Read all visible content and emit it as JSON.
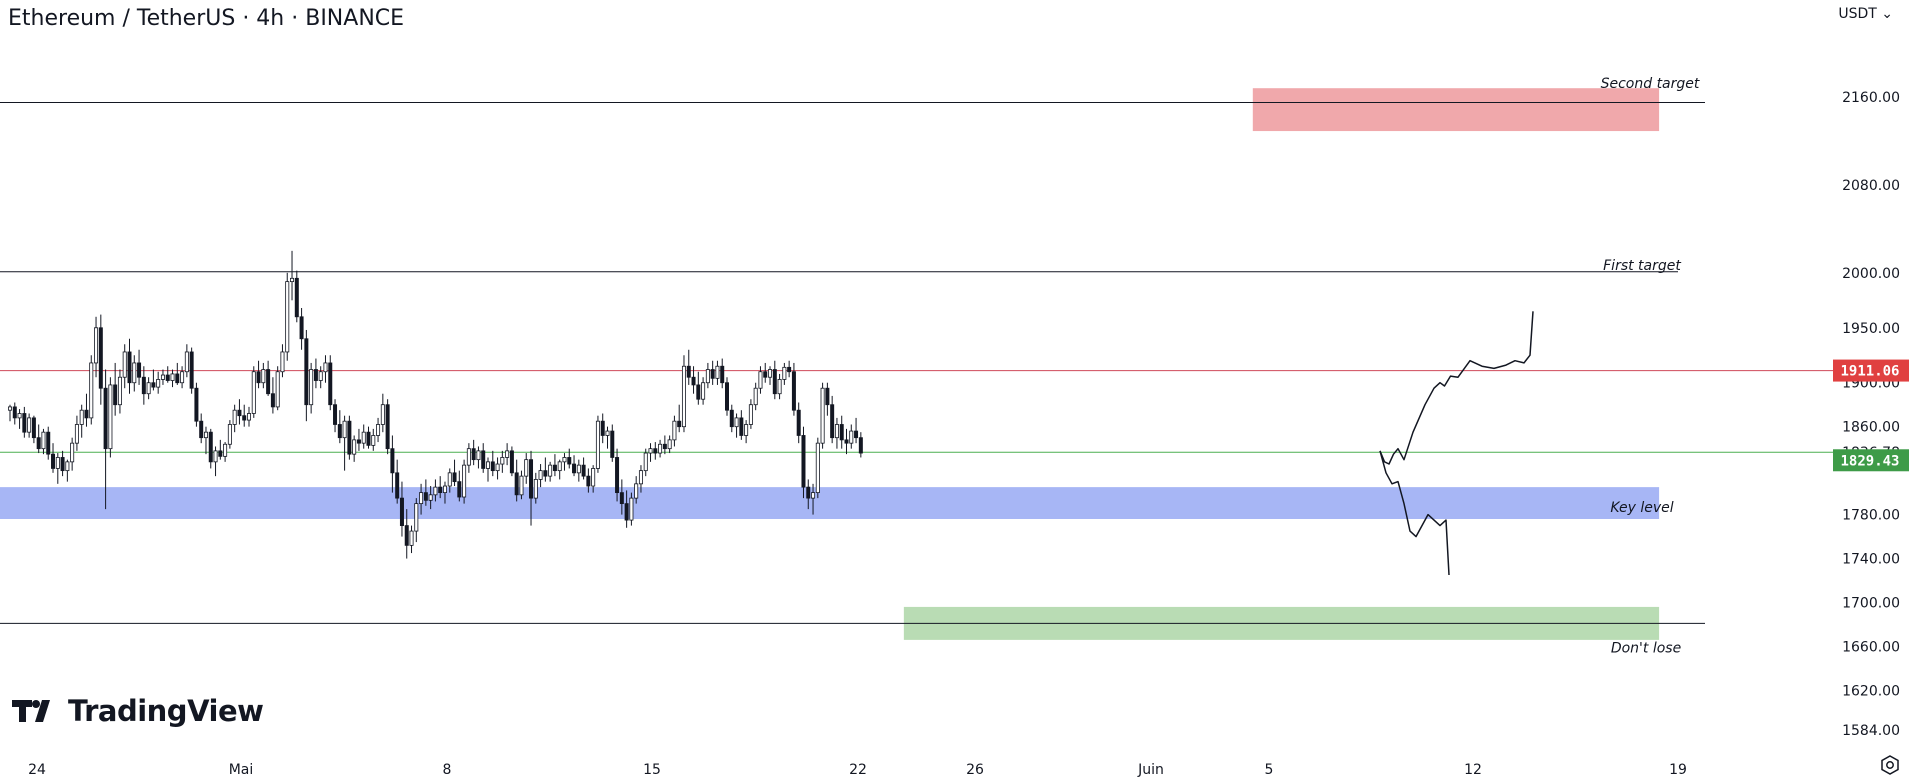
{
  "header": {
    "title": "Ethereum / TetherUS · 4h · BINANCE",
    "currency": "USDT"
  },
  "brand": {
    "name": "TradingView"
  },
  "colors": {
    "up": "#131722",
    "down": "#131722",
    "second_target_zone": "#f0a8ab",
    "key_level_zone": "#a7b6f5",
    "dont_lose_zone": "#b9dcb4",
    "resistance_line": "#cf4a5a",
    "support_line": "#4caf50",
    "badge_red": "#e04040",
    "badge_green": "#3e9b48"
  },
  "chart_data": {
    "type": "candlestick",
    "symbol": "ETHUSDT",
    "interval": "4h",
    "ylim": [
      1570,
      2200
    ],
    "price_ticks": [
      "2160.00",
      "2080.00",
      "2000.00",
      "1950.00",
      "1900.00",
      "1860.00",
      "1780.00",
      "1740.00",
      "1700.00",
      "1660.00",
      "1620.00",
      "1584.00"
    ],
    "time_ticks": [
      {
        "label": "24",
        "index": 0
      },
      {
        "label": "Mai",
        "index": 42
      },
      {
        "label": "8",
        "index": 84
      },
      {
        "label": "15",
        "index": 126
      },
      {
        "label": "22",
        "index": 168
      },
      {
        "label": "26",
        "index": 192
      },
      {
        "label": "Juin",
        "index": 234
      },
      {
        "label": "5",
        "index": 258
      },
      {
        "label": "12",
        "index": 300
      },
      {
        "label": "19",
        "index": 342
      }
    ],
    "x_range": [
      -5,
      348
    ],
    "horizontal_lines": [
      {
        "price": 2155,
        "color": "#131722"
      },
      {
        "price": 2001,
        "color": "#131722"
      },
      {
        "price": 1911.06,
        "color": "#cf4a5a"
      },
      {
        "price": 1836.78,
        "color": "#4caf50"
      },
      {
        "price": 1681,
        "color": "#131722"
      }
    ],
    "zones": [
      {
        "name": "Second target",
        "from_index": 260,
        "to_index": 345,
        "top": 2168,
        "bottom": 2129,
        "color": "#f0a8ab",
        "label_pos": "above"
      },
      {
        "name": "Key level",
        "from_index": -5,
        "to_index": 345,
        "top": 1805,
        "bottom": 1776,
        "color": "#a7b6f5",
        "label_pos": "inside"
      },
      {
        "name": "Don't lose",
        "from_index": 187,
        "to_index": 345,
        "top": 1696,
        "bottom": 1666,
        "color": "#b9dcb4",
        "label_pos": "below"
      }
    ],
    "annotations": [
      {
        "text": "Second target",
        "index": 328,
        "price": 2172
      },
      {
        "text": "First target",
        "index": 326,
        "price": 2006
      },
      {
        "text": "Key level",
        "index": 326,
        "price": 1786
      },
      {
        "text": "Don't lose",
        "index": 326,
        "price": 1658
      }
    ],
    "price_labels": [
      {
        "value": "1911.06",
        "price": 1911.06,
        "style": "badge",
        "color": "#e04040"
      },
      {
        "value": "1836.78",
        "price": 1836.78,
        "style": "plain"
      },
      {
        "value": "1829.43",
        "price": 1829.43,
        "style": "badge",
        "color": "#3e9b48"
      }
    ],
    "candles": [
      [
        1875,
        1880,
        1865,
        1878
      ],
      [
        1878,
        1882,
        1862,
        1868
      ],
      [
        1868,
        1876,
        1858,
        1872
      ],
      [
        1872,
        1878,
        1850,
        1855
      ],
      [
        1855,
        1872,
        1850,
        1868
      ],
      [
        1868,
        1870,
        1845,
        1850
      ],
      [
        1850,
        1862,
        1836,
        1840
      ],
      [
        1840,
        1858,
        1835,
        1855
      ],
      [
        1855,
        1860,
        1830,
        1835
      ],
      [
        1835,
        1845,
        1818,
        1822
      ],
      [
        1822,
        1836,
        1808,
        1832
      ],
      [
        1832,
        1838,
        1815,
        1820
      ],
      [
        1820,
        1830,
        1810,
        1828
      ],
      [
        1828,
        1850,
        1820,
        1845
      ],
      [
        1845,
        1870,
        1838,
        1862
      ],
      [
        1862,
        1880,
        1850,
        1875
      ],
      [
        1875,
        1890,
        1860,
        1868
      ],
      [
        1868,
        1925,
        1862,
        1918
      ],
      [
        1918,
        1960,
        1905,
        1950
      ],
      [
        1950,
        1962,
        1880,
        1895
      ],
      [
        1895,
        1912,
        1785,
        1840
      ],
      [
        1840,
        1905,
        1832,
        1898
      ],
      [
        1898,
        1918,
        1870,
        1880
      ],
      [
        1880,
        1912,
        1872,
        1905
      ],
      [
        1905,
        1935,
        1895,
        1928
      ],
      [
        1928,
        1940,
        1890,
        1900
      ],
      [
        1900,
        1925,
        1892,
        1918
      ],
      [
        1918,
        1930,
        1898,
        1905
      ],
      [
        1905,
        1915,
        1880,
        1890
      ],
      [
        1890,
        1905,
        1885,
        1900
      ],
      [
        1900,
        1912,
        1893,
        1896
      ],
      [
        1896,
        1910,
        1890,
        1903
      ],
      [
        1903,
        1912,
        1898,
        1907
      ],
      [
        1907,
        1915,
        1900,
        1902
      ],
      [
        1902,
        1912,
        1896,
        1908
      ],
      [
        1908,
        1918,
        1898,
        1900
      ],
      [
        1900,
        1915,
        1895,
        1910
      ],
      [
        1910,
        1935,
        1905,
        1928
      ],
      [
        1928,
        1932,
        1890,
        1895
      ],
      [
        1895,
        1900,
        1860,
        1865
      ],
      [
        1865,
        1872,
        1845,
        1850
      ],
      [
        1850,
        1860,
        1835,
        1855
      ],
      [
        1855,
        1858,
        1822,
        1828
      ],
      [
        1828,
        1842,
        1815,
        1838
      ],
      [
        1838,
        1848,
        1830,
        1833
      ],
      [
        1833,
        1846,
        1828,
        1844
      ],
      [
        1844,
        1866,
        1840,
        1862
      ],
      [
        1862,
        1880,
        1855,
        1875
      ],
      [
        1875,
        1885,
        1862,
        1870
      ],
      [
        1870,
        1880,
        1860,
        1866
      ],
      [
        1866,
        1878,
        1860,
        1872
      ],
      [
        1872,
        1915,
        1868,
        1910
      ],
      [
        1910,
        1920,
        1895,
        1900
      ],
      [
        1900,
        1918,
        1895,
        1912
      ],
      [
        1912,
        1920,
        1888,
        1890
      ],
      [
        1890,
        1905,
        1872,
        1878
      ],
      [
        1878,
        1915,
        1875,
        1910
      ],
      [
        1910,
        1935,
        1905,
        1928
      ],
      [
        1928,
        2000,
        1920,
        1992
      ],
      [
        1992,
        2020,
        1975,
        1995
      ],
      [
        1995,
        2002,
        1955,
        1960
      ],
      [
        1960,
        1968,
        1930,
        1940
      ],
      [
        1940,
        1948,
        1865,
        1880
      ],
      [
        1880,
        1918,
        1872,
        1912
      ],
      [
        1912,
        1922,
        1895,
        1902
      ],
      [
        1902,
        1915,
        1895,
        1910
      ],
      [
        1910,
        1925,
        1900,
        1918
      ],
      [
        1918,
        1925,
        1875,
        1880
      ],
      [
        1880,
        1885,
        1855,
        1862
      ],
      [
        1862,
        1875,
        1845,
        1850
      ],
      [
        1850,
        1870,
        1820,
        1865
      ],
      [
        1865,
        1870,
        1830,
        1835
      ],
      [
        1835,
        1852,
        1828,
        1848
      ],
      [
        1848,
        1858,
        1838,
        1845
      ],
      [
        1845,
        1862,
        1840,
        1855
      ],
      [
        1855,
        1860,
        1840,
        1843
      ],
      [
        1843,
        1858,
        1838,
        1852
      ],
      [
        1852,
        1868,
        1846,
        1862
      ],
      [
        1862,
        1890,
        1855,
        1880
      ],
      [
        1880,
        1885,
        1835,
        1840
      ],
      [
        1840,
        1852,
        1800,
        1818
      ],
      [
        1818,
        1830,
        1790,
        1795
      ],
      [
        1795,
        1810,
        1760,
        1770
      ],
      [
        1770,
        1785,
        1740,
        1752
      ],
      [
        1752,
        1770,
        1745,
        1765
      ],
      [
        1765,
        1795,
        1755,
        1790
      ],
      [
        1790,
        1808,
        1780,
        1800
      ],
      [
        1800,
        1812,
        1788,
        1793
      ],
      [
        1793,
        1806,
        1785,
        1798
      ],
      [
        1798,
        1812,
        1792,
        1805
      ],
      [
        1805,
        1815,
        1795,
        1800
      ],
      [
        1800,
        1810,
        1790,
        1806
      ],
      [
        1806,
        1822,
        1800,
        1818
      ],
      [
        1818,
        1830,
        1806,
        1810
      ],
      [
        1810,
        1820,
        1792,
        1796
      ],
      [
        1796,
        1830,
        1790,
        1825
      ],
      [
        1825,
        1845,
        1818,
        1840
      ],
      [
        1840,
        1848,
        1825,
        1830
      ],
      [
        1830,
        1842,
        1822,
        1838
      ],
      [
        1838,
        1845,
        1818,
        1822
      ],
      [
        1822,
        1832,
        1810,
        1828
      ],
      [
        1828,
        1838,
        1815,
        1820
      ],
      [
        1820,
        1832,
        1812,
        1826
      ],
      [
        1826,
        1838,
        1818,
        1832
      ],
      [
        1832,
        1845,
        1825,
        1838
      ],
      [
        1838,
        1842,
        1815,
        1818
      ],
      [
        1818,
        1830,
        1792,
        1798
      ],
      [
        1798,
        1820,
        1794,
        1815
      ],
      [
        1815,
        1836,
        1808,
        1830
      ],
      [
        1830,
        1838,
        1770,
        1795
      ],
      [
        1795,
        1818,
        1790,
        1812
      ],
      [
        1812,
        1826,
        1805,
        1820
      ],
      [
        1820,
        1832,
        1810,
        1815
      ],
      [
        1815,
        1828,
        1810,
        1825
      ],
      [
        1825,
        1835,
        1815,
        1820
      ],
      [
        1820,
        1830,
        1812,
        1828
      ],
      [
        1828,
        1836,
        1820,
        1832
      ],
      [
        1832,
        1840,
        1822,
        1826
      ],
      [
        1826,
        1834,
        1815,
        1818
      ],
      [
        1818,
        1830,
        1810,
        1825
      ],
      [
        1825,
        1832,
        1812,
        1815
      ],
      [
        1815,
        1822,
        1800,
        1806
      ],
      [
        1806,
        1825,
        1800,
        1822
      ],
      [
        1822,
        1870,
        1818,
        1865
      ],
      [
        1865,
        1872,
        1845,
        1852
      ],
      [
        1852,
        1860,
        1840,
        1856
      ],
      [
        1856,
        1862,
        1828,
        1832
      ],
      [
        1832,
        1840,
        1792,
        1800
      ],
      [
        1800,
        1812,
        1780,
        1790
      ],
      [
        1790,
        1802,
        1768,
        1775
      ],
      [
        1775,
        1800,
        1770,
        1795
      ],
      [
        1795,
        1815,
        1790,
        1808
      ],
      [
        1808,
        1825,
        1800,
        1820
      ],
      [
        1820,
        1840,
        1815,
        1836
      ],
      [
        1836,
        1845,
        1828,
        1840
      ],
      [
        1840,
        1846,
        1830,
        1836
      ],
      [
        1836,
        1848,
        1832,
        1844
      ],
      [
        1844,
        1852,
        1835,
        1840
      ],
      [
        1840,
        1852,
        1836,
        1848
      ],
      [
        1848,
        1870,
        1842,
        1865
      ],
      [
        1865,
        1880,
        1855,
        1860
      ],
      [
        1860,
        1925,
        1855,
        1915
      ],
      [
        1915,
        1930,
        1898,
        1905
      ],
      [
        1905,
        1915,
        1890,
        1898
      ],
      [
        1898,
        1910,
        1880,
        1885
      ],
      [
        1885,
        1905,
        1880,
        1900
      ],
      [
        1900,
        1918,
        1895,
        1912
      ],
      [
        1912,
        1920,
        1898,
        1904
      ],
      [
        1904,
        1920,
        1898,
        1915
      ],
      [
        1915,
        1922,
        1895,
        1900
      ],
      [
        1900,
        1905,
        1870,
        1875
      ],
      [
        1875,
        1880,
        1855,
        1860
      ],
      [
        1860,
        1872,
        1850,
        1868
      ],
      [
        1868,
        1875,
        1848,
        1852
      ],
      [
        1852,
        1866,
        1845,
        1862
      ],
      [
        1862,
        1885,
        1858,
        1880
      ],
      [
        1880,
        1900,
        1875,
        1895
      ],
      [
        1895,
        1915,
        1890,
        1910
      ],
      [
        1910,
        1918,
        1900,
        1905
      ],
      [
        1905,
        1915,
        1898,
        1912
      ],
      [
        1912,
        1920,
        1885,
        1890
      ],
      [
        1890,
        1908,
        1885,
        1903
      ],
      [
        1903,
        1918,
        1898,
        1914
      ],
      [
        1914,
        1920,
        1905,
        1910
      ],
      [
        1910,
        1918,
        1870,
        1875
      ],
      [
        1875,
        1882,
        1845,
        1852
      ],
      [
        1852,
        1860,
        1795,
        1805
      ],
      [
        1805,
        1812,
        1785,
        1795
      ],
      [
        1795,
        1808,
        1780,
        1800
      ],
      [
        1800,
        1850,
        1795,
        1845
      ],
      [
        1845,
        1900,
        1840,
        1895
      ],
      [
        1895,
        1900,
        1870,
        1880
      ],
      [
        1880,
        1888,
        1845,
        1850
      ],
      [
        1850,
        1868,
        1840,
        1862
      ],
      [
        1862,
        1870,
        1840,
        1848
      ],
      [
        1848,
        1858,
        1835,
        1845
      ],
      [
        1845,
        1862,
        1840,
        1856
      ],
      [
        1856,
        1868,
        1845,
        1850
      ],
      [
        1850,
        1855,
        1832,
        1836
      ]
    ],
    "projection": [
      [
        1000,
        1838
      ],
      [
        1003,
        1828
      ],
      [
        1006,
        1826
      ],
      [
        1009,
        1835
      ],
      [
        1012,
        1840
      ],
      [
        1016,
        1830
      ],
      [
        1022,
        1855
      ],
      [
        1030,
        1880
      ],
      [
        1036,
        1895
      ],
      [
        1040,
        1900
      ],
      [
        1043,
        1897
      ],
      [
        1047,
        1906
      ],
      [
        1052,
        1905
      ],
      [
        1060,
        1920
      ],
      [
        1068,
        1915
      ],
      [
        1076,
        1913
      ],
      [
        1084,
        1916
      ],
      [
        1090,
        1920
      ],
      [
        1096,
        1918
      ],
      [
        1100,
        1925
      ],
      [
        1102,
        1965
      ]
    ],
    "projection_down": [
      [
        1000,
        1838
      ],
      [
        1004,
        1818
      ],
      [
        1008,
        1808
      ],
      [
        1012,
        1810
      ],
      [
        1016,
        1790
      ],
      [
        1020,
        1765
      ],
      [
        1024,
        1760
      ],
      [
        1028,
        1770
      ],
      [
        1032,
        1780
      ],
      [
        1036,
        1775
      ],
      [
        1040,
        1770
      ],
      [
        1044,
        1775
      ],
      [
        1046,
        1725
      ]
    ]
  }
}
